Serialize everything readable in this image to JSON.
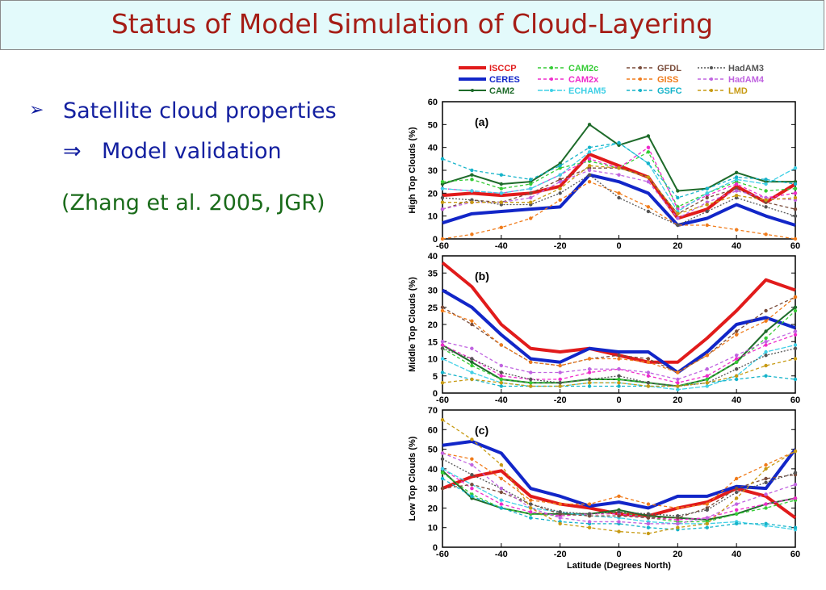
{
  "title": "Status of Model Simulation of Cloud-Layering",
  "bullet": {
    "marker": "➢",
    "text": "Satellite cloud properties"
  },
  "sub_bullet": {
    "marker": "⇒",
    "text": "Model validation"
  },
  "citation": "(Zhang et al. 2005, JGR)",
  "legend": [
    {
      "name": "ISCCP",
      "color": "#e11b1b"
    },
    {
      "name": "CERES",
      "color": "#1226c8"
    },
    {
      "name": "CAM2",
      "color": "#1e6b2a"
    },
    {
      "name": "CAM2c",
      "color": "#35cc35"
    },
    {
      "name": "CAM2x",
      "color": "#ef2bcb"
    },
    {
      "name": "ECHAM5",
      "color": "#3fd0e6"
    },
    {
      "name": "GFDL",
      "color": "#7a4c3a"
    },
    {
      "name": "GISS",
      "color": "#f07b1a"
    },
    {
      "name": "GSFC",
      "color": "#15b3c9"
    },
    {
      "name": "HadAM3",
      "color": "#555555"
    },
    {
      "name": "HadAM4",
      "color": "#c063e0"
    },
    {
      "name": "LMD",
      "color": "#c79a12"
    }
  ],
  "chart_data": [
    {
      "type": "line",
      "panel_label": "(a)",
      "ylabel": "High Top Clouds (%)",
      "ylim": [
        0,
        60
      ],
      "yticks": [
        0,
        10,
        20,
        30,
        40,
        50,
        60
      ],
      "xlim": [
        -60,
        60
      ],
      "xticks": [
        -60,
        -40,
        -20,
        0,
        20,
        40,
        60
      ],
      "xlabel": "",
      "x": [
        -60,
        -50,
        -40,
        -30,
        -20,
        -10,
        0,
        10,
        20,
        30,
        40,
        50,
        60
      ],
      "series": [
        {
          "name": "ISCCP",
          "values": [
            19,
            20,
            19,
            20,
            23,
            37,
            32,
            27,
            9,
            13,
            23,
            16,
            24
          ]
        },
        {
          "name": "CERES",
          "values": [
            7,
            11,
            12,
            13,
            14,
            28,
            25,
            20,
            6,
            9,
            15,
            10,
            6
          ]
        },
        {
          "name": "CAM2",
          "values": [
            24,
            28,
            24,
            25,
            33,
            50,
            41,
            45,
            21,
            22,
            29,
            25,
            25
          ]
        },
        {
          "name": "CAM2c",
          "values": [
            25,
            26,
            22,
            24,
            31,
            34,
            31,
            38,
            14,
            20,
            25,
            21,
            22
          ]
        },
        {
          "name": "CAM2x",
          "values": [
            22,
            21,
            20,
            22,
            28,
            35,
            31,
            40,
            13,
            19,
            24,
            18,
            20
          ]
        },
        {
          "name": "ECHAM5",
          "values": [
            22,
            21,
            20,
            22,
            28,
            38,
            42,
            33,
            12,
            20,
            26,
            24,
            31
          ]
        },
        {
          "name": "GFDL",
          "values": [
            13,
            17,
            16,
            20,
            26,
            31,
            31,
            27,
            11,
            18,
            22,
            16,
            13
          ]
        },
        {
          "name": "GISS",
          "values": [
            0,
            2,
            5,
            9,
            17,
            25,
            20,
            14,
            6,
            6,
            4,
            2,
            0
          ]
        },
        {
          "name": "GSFC",
          "values": [
            35,
            30,
            28,
            26,
            32,
            40,
            42,
            33,
            18,
            22,
            27,
            26,
            24
          ]
        },
        {
          "name": "HadAM3",
          "values": [
            18,
            17,
            15,
            15,
            20,
            28,
            18,
            12,
            6,
            12,
            18,
            14,
            10
          ]
        },
        {
          "name": "HadAM4",
          "values": [
            13,
            16,
            16,
            18,
            25,
            30,
            28,
            25,
            9,
            16,
            21,
            18,
            17
          ]
        },
        {
          "name": "LMD",
          "values": [
            16,
            16,
            16,
            16,
            22,
            32,
            31,
            27,
            11,
            15,
            19,
            17,
            18
          ]
        }
      ]
    },
    {
      "type": "line",
      "panel_label": "(b)",
      "ylabel": "Middle Top Clouds (%)",
      "ylim": [
        0,
        40
      ],
      "yticks": [
        0,
        5,
        10,
        15,
        20,
        25,
        30,
        35,
        40
      ],
      "xlim": [
        -60,
        60
      ],
      "xticks": [
        -60,
        -40,
        -20,
        0,
        20,
        40,
        60
      ],
      "xlabel": "",
      "x": [
        -60,
        -50,
        -40,
        -30,
        -20,
        -10,
        0,
        10,
        20,
        30,
        40,
        50,
        60
      ],
      "series": [
        {
          "name": "ISCCP",
          "values": [
            38,
            31,
            20,
            13,
            12,
            13,
            11,
            9,
            9,
            16,
            24,
            33,
            30
          ]
        },
        {
          "name": "CERES",
          "values": [
            30,
            25,
            17,
            10,
            9,
            13,
            12,
            12,
            6,
            12,
            20,
            22,
            19
          ]
        },
        {
          "name": "CAM2",
          "values": [
            14,
            9,
            4,
            3,
            3,
            4,
            4,
            3,
            2,
            4,
            9,
            18,
            25
          ]
        },
        {
          "name": "CAM2c",
          "values": [
            13,
            8,
            4,
            3,
            3,
            4,
            4,
            3,
            2,
            4,
            9,
            16,
            24
          ]
        },
        {
          "name": "CAM2x",
          "values": [
            14,
            10,
            5,
            4,
            4,
            6,
            7,
            5,
            3,
            5,
            10,
            14,
            17
          ]
        },
        {
          "name": "ECHAM5",
          "values": [
            10,
            6,
            3,
            2,
            2,
            3,
            3,
            2,
            1,
            2,
            5,
            12,
            14
          ]
        },
        {
          "name": "GFDL",
          "values": [
            25,
            20,
            14,
            9,
            8,
            10,
            11,
            10,
            6,
            11,
            18,
            24,
            28
          ]
        },
        {
          "name": "GISS",
          "values": [
            24,
            21,
            14,
            9,
            8,
            10,
            10,
            9,
            6,
            11,
            17,
            21,
            28
          ]
        },
        {
          "name": "GSFC",
          "values": [
            6,
            4,
            2,
            2,
            2,
            2,
            2,
            2,
            2,
            3,
            4,
            5,
            4
          ]
        },
        {
          "name": "HadAM3",
          "values": [
            13,
            10,
            6,
            4,
            3,
            4,
            5,
            3,
            2,
            3,
            7,
            11,
            13
          ]
        },
        {
          "name": "HadAM4",
          "values": [
            15,
            13,
            8,
            6,
            6,
            7,
            7,
            6,
            4,
            7,
            11,
            15,
            18
          ]
        },
        {
          "name": "LMD",
          "values": [
            3,
            4,
            3,
            2,
            2,
            3,
            3,
            2,
            2,
            3,
            5,
            8,
            10
          ]
        }
      ]
    },
    {
      "type": "line",
      "panel_label": "(c)",
      "ylabel": "Low Top Clouds (%)",
      "ylim": [
        0,
        70
      ],
      "yticks": [
        0,
        10,
        20,
        30,
        40,
        50,
        60,
        70
      ],
      "xlim": [
        -60,
        60
      ],
      "xticks": [
        -60,
        -40,
        -20,
        0,
        20,
        40,
        60
      ],
      "xlabel": "Latitude (Degrees North)",
      "x": [
        -60,
        -50,
        -40,
        -30,
        -20,
        -10,
        0,
        10,
        20,
        30,
        40,
        50,
        60
      ],
      "series": [
        {
          "name": "ISCCP",
          "values": [
            30,
            36,
            39,
            26,
            22,
            20,
            17,
            16,
            20,
            23,
            30,
            26,
            15
          ]
        },
        {
          "name": "CERES",
          "values": [
            52,
            54,
            48,
            30,
            26,
            21,
            23,
            20,
            26,
            26,
            31,
            30,
            50
          ]
        },
        {
          "name": "CAM2",
          "values": [
            39,
            25,
            20,
            17,
            17,
            17,
            19,
            16,
            15,
            14,
            17,
            22,
            25
          ]
        },
        {
          "name": "CAM2c",
          "values": [
            38,
            27,
            20,
            17,
            16,
            17,
            18,
            15,
            13,
            13,
            17,
            20,
            24
          ]
        },
        {
          "name": "CAM2x",
          "values": [
            40,
            30,
            22,
            18,
            16,
            17,
            17,
            15,
            14,
            15,
            19,
            22,
            25
          ]
        },
        {
          "name": "ECHAM5",
          "values": [
            40,
            32,
            24,
            20,
            18,
            16,
            15,
            13,
            12,
            12,
            13,
            11,
            9
          ]
        },
        {
          "name": "GFDL",
          "values": [
            30,
            32,
            28,
            22,
            17,
            16,
            16,
            15,
            15,
            20,
            30,
            35,
            37
          ]
        },
        {
          "name": "GISS",
          "values": [
            48,
            45,
            35,
            24,
            22,
            22,
            26,
            22,
            20,
            22,
            35,
            42,
            49
          ]
        },
        {
          "name": "GSFC",
          "values": [
            35,
            26,
            20,
            15,
            13,
            12,
            12,
            10,
            9,
            10,
            12,
            12,
            10
          ]
        },
        {
          "name": "HadAM3",
          "values": [
            45,
            37,
            30,
            22,
            18,
            17,
            18,
            17,
            16,
            19,
            28,
            33,
            38
          ]
        },
        {
          "name": "HadAM4",
          "values": [
            48,
            42,
            30,
            20,
            15,
            13,
            13,
            12,
            12,
            15,
            22,
            27,
            32
          ]
        },
        {
          "name": "LMD",
          "values": [
            65,
            55,
            42,
            20,
            12,
            10,
            8,
            7,
            10,
            12,
            25,
            40,
            49
          ]
        }
      ]
    }
  ]
}
